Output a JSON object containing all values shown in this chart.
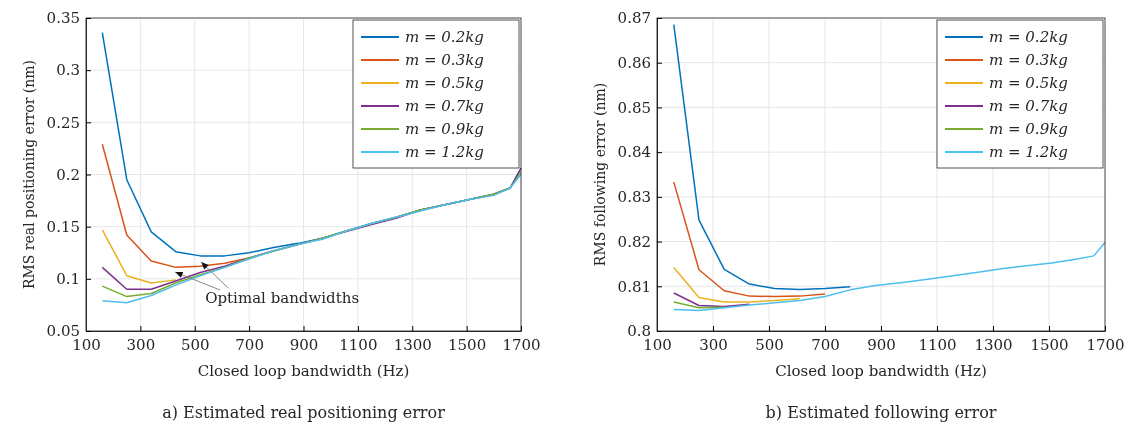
{
  "chart_data": [
    {
      "type": "line",
      "title": "a) Estimated real positioning error",
      "xlabel": "Closed loop bandwidth (Hz)",
      "ylabel": "RMS real positioning error (nm)",
      "x": [
        160,
        250,
        340,
        430,
        520,
        610,
        700,
        790,
        880,
        970,
        1060,
        1150,
        1240,
        1330,
        1420,
        1510,
        1600,
        1660,
        1700
      ],
      "xlim": [
        100,
        1700
      ],
      "xticks": [
        100,
        300,
        500,
        700,
        900,
        1100,
        1300,
        1500,
        1700
      ],
      "ylim": [
        0.05,
        0.35
      ],
      "yticks": [
        0.05,
        0.1,
        0.15,
        0.2,
        0.25,
        0.3,
        0.35
      ],
      "grid": true,
      "legend": "top right",
      "series": [
        {
          "name": "m = 0.2kg",
          "color": "#0072bd",
          "values": [
            0.336,
            0.195,
            0.145,
            0.126,
            0.122,
            0.122,
            0.125,
            0.13,
            0.134,
            0.139,
            0.146,
            0.153,
            0.159,
            0.166,
            0.171,
            0.176,
            0.181,
            0.187,
            0.206
          ]
        },
        {
          "name": "m = 0.3kg",
          "color": "#d95319",
          "values": [
            0.229,
            0.142,
            0.117,
            0.111,
            0.112,
            0.115,
            0.12,
            null,
            null,
            null,
            null,
            null,
            null,
            null,
            null,
            null,
            null,
            null,
            null
          ]
        },
        {
          "name": "m = 0.5kg",
          "color": "#edb120",
          "values": [
            0.147,
            0.103,
            0.096,
            0.099,
            null,
            null,
            null,
            null,
            null,
            null,
            null,
            null,
            null,
            null,
            null,
            null,
            null,
            null,
            null
          ]
        },
        {
          "name": "m = 0.7kg",
          "color": "#7e2f8e",
          "values": [
            0.111,
            0.09,
            0.09,
            0.098,
            0.106,
            0.112,
            0.12,
            0.127,
            0.133,
            0.139,
            null,
            0.152,
            0.158,
            0.166,
            null,
            null,
            0.181,
            0.187,
            0.206
          ]
        },
        {
          "name": "m = 0.9kg",
          "color": "#77ac30",
          "values": [
            0.093,
            0.083,
            0.086,
            0.096,
            0.104,
            0.111,
            0.12,
            null,
            0.133,
            0.139,
            0.146,
            0.153,
            0.159,
            0.166,
            null,
            null,
            0.181,
            0.187,
            0.202
          ]
        },
        {
          "name": "m = 1.2kg",
          "color": "#4dbeee",
          "values": [
            0.079,
            0.077,
            0.084,
            0.094,
            0.103,
            0.111,
            0.119,
            0.127,
            0.133,
            0.138,
            0.146,
            0.153,
            0.159,
            0.165,
            0.171,
            0.176,
            0.18,
            0.187,
            0.2
          ]
        }
      ],
      "annotations": [
        {
          "text": "Optimal bandwidths",
          "x": 520,
          "y": 0.118
        }
      ]
    },
    {
      "type": "line",
      "title": "b) Estimated following error",
      "xlabel": "Closed loop bandwidth (Hz)",
      "ylabel": "RMS following error (nm)",
      "x": [
        160,
        250,
        340,
        430,
        520,
        610,
        700,
        790,
        880,
        970,
        1060,
        1150,
        1240,
        1330,
        1420,
        1510,
        1600,
        1660,
        1700
      ],
      "xlim": [
        100,
        1700
      ],
      "xticks": [
        100,
        300,
        500,
        700,
        900,
        1100,
        1300,
        1500,
        1700
      ],
      "ylim": [
        0.8,
        0.87
      ],
      "yticks": [
        0.8,
        0.81,
        0.82,
        0.83,
        0.84,
        0.85,
        0.86,
        0.87
      ],
      "grid": true,
      "legend": "top right",
      "series": [
        {
          "name": "m = 0.2kg",
          "color": "#0072bd",
          "values": [
            0.8685,
            0.8248,
            0.8138,
            0.8105,
            0.8095,
            0.8093,
            0.8095,
            0.8099,
            null,
            null,
            null,
            null,
            null,
            null,
            null,
            null,
            null,
            null,
            null
          ]
        },
        {
          "name": "m = 0.3kg",
          "color": "#d95319",
          "values": [
            0.8333,
            0.8137,
            0.809,
            0.8078,
            0.8077,
            0.8078,
            0.8083,
            null,
            null,
            null,
            null,
            null,
            null,
            null,
            null,
            null,
            null,
            null,
            null
          ]
        },
        {
          "name": "m = 0.5kg",
          "color": "#edb120",
          "values": [
            0.8142,
            0.8075,
            0.8065,
            0.8065,
            0.8068,
            0.8072,
            null,
            null,
            null,
            null,
            null,
            null,
            null,
            null,
            null,
            null,
            null,
            null,
            null
          ]
        },
        {
          "name": "m = 0.7kg",
          "color": "#7e2f8e",
          "values": [
            0.8085,
            0.8057,
            0.8055,
            0.806,
            null,
            null,
            null,
            null,
            null,
            null,
            null,
            null,
            null,
            null,
            null,
            null,
            null,
            null,
            null
          ]
        },
        {
          "name": "m = 0.9kg",
          "color": "#77ac30",
          "values": [
            0.8065,
            0.8052,
            0.8053,
            null,
            null,
            null,
            null,
            null,
            null,
            null,
            null,
            null,
            null,
            null,
            null,
            null,
            null,
            null,
            null
          ]
        },
        {
          "name": "m = 1.2kg",
          "color": "#4dbeee",
          "values": [
            0.8048,
            0.8046,
            0.8052,
            0.8058,
            0.8063,
            0.8068,
            0.8077,
            0.8092,
            0.8102,
            0.8108,
            0.8115,
            0.8123,
            0.8131,
            0.8139,
            0.8146,
            0.8152,
            0.8161,
            0.8168,
            0.8198
          ]
        }
      ]
    }
  ]
}
